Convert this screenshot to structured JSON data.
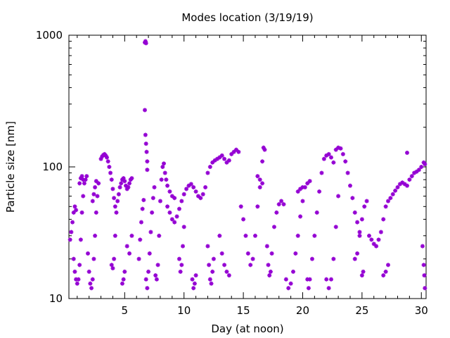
{
  "chart_data": {
    "type": "scatter",
    "title": "Modes location (3/19/19)",
    "xlabel": "Day (at noon)",
    "ylabel": "Particle size [nm]",
    "xlim": [
      0.3,
      30.4
    ],
    "ylim": [
      10,
      1000
    ],
    "yscale": "log",
    "grid": false,
    "legend": "none",
    "x_ticks": [
      5,
      10,
      15,
      20,
      25,
      30
    ],
    "x_tick_labels": [
      "5",
      "10",
      "15",
      "20",
      "25",
      "30"
    ],
    "y_ticks": [
      10,
      100,
      1000
    ],
    "y_tick_labels": [
      "10",
      "100",
      "1000"
    ],
    "marker": "asterisk",
    "color": "#9400d3",
    "series": [
      {
        "values": [
          [
            0.4,
            28
          ],
          [
            0.5,
            32
          ],
          [
            0.6,
            38
          ],
          [
            0.7,
            45
          ],
          [
            0.8,
            50
          ],
          [
            0.9,
            47
          ],
          [
            0.7,
            20
          ],
          [
            0.8,
            16
          ],
          [
            0.9,
            14
          ],
          [
            1.0,
            13
          ],
          [
            1.1,
            14
          ],
          [
            1.2,
            18
          ],
          [
            1.3,
            28
          ],
          [
            1.4,
            45
          ],
          [
            1.5,
            60
          ],
          [
            1.6,
            75
          ],
          [
            1.7,
            80
          ],
          [
            1.8,
            85
          ],
          [
            1.2,
            75
          ],
          [
            1.3,
            82
          ],
          [
            1.4,
            85
          ],
          [
            1.5,
            80
          ],
          [
            1.9,
            22
          ],
          [
            2.0,
            16
          ],
          [
            2.1,
            13
          ],
          [
            2.2,
            12
          ],
          [
            2.3,
            14
          ],
          [
            2.4,
            20
          ],
          [
            2.5,
            30
          ],
          [
            2.6,
            45
          ],
          [
            2.7,
            60
          ],
          [
            2.8,
            75
          ],
          [
            2.3,
            55
          ],
          [
            2.4,
            62
          ],
          [
            2.5,
            70
          ],
          [
            2.6,
            78
          ],
          [
            3.0,
            115
          ],
          [
            3.1,
            120
          ],
          [
            3.2,
            123
          ],
          [
            3.3,
            125
          ],
          [
            3.4,
            122
          ],
          [
            3.5,
            118
          ],
          [
            3.6,
            110
          ],
          [
            3.7,
            100
          ],
          [
            3.8,
            90
          ],
          [
            3.9,
            80
          ],
          [
            4.0,
            68
          ],
          [
            4.1,
            58
          ],
          [
            4.2,
            50
          ],
          [
            3.9,
            18
          ],
          [
            4.0,
            17
          ],
          [
            4.1,
            20
          ],
          [
            4.2,
            30
          ],
          [
            4.3,
            45
          ],
          [
            4.4,
            55
          ],
          [
            4.5,
            62
          ],
          [
            4.6,
            70
          ],
          [
            4.7,
            75
          ],
          [
            4.8,
            80
          ],
          [
            4.9,
            82
          ],
          [
            5.0,
            78
          ],
          [
            5.1,
            72
          ],
          [
            5.2,
            68
          ],
          [
            5.3,
            70
          ],
          [
            5.4,
            75
          ],
          [
            5.5,
            80
          ],
          [
            5.6,
            82
          ],
          [
            4.8,
            13
          ],
          [
            4.9,
            14
          ],
          [
            5.0,
            16
          ],
          [
            5.2,
            25
          ],
          [
            5.4,
            22
          ],
          [
            5.6,
            30
          ],
          [
            6.2,
            20
          ],
          [
            6.3,
            28
          ],
          [
            6.4,
            38
          ],
          [
            6.5,
            48
          ],
          [
            6.6,
            56
          ],
          [
            6.7,
            880
          ],
          [
            6.75,
            900
          ],
          [
            6.8,
            870
          ],
          [
            6.7,
            270
          ],
          [
            6.75,
            175
          ],
          [
            6.8,
            150
          ],
          [
            6.85,
            130
          ],
          [
            6.9,
            110
          ],
          [
            6.9,
            95
          ],
          [
            6.8,
            14
          ],
          [
            6.9,
            12
          ],
          [
            7.0,
            16
          ],
          [
            7.1,
            22
          ],
          [
            7.2,
            32
          ],
          [
            7.3,
            45
          ],
          [
            7.4,
            58
          ],
          [
            7.5,
            70
          ],
          [
            7.6,
            15
          ],
          [
            7.7,
            14
          ],
          [
            7.8,
            18
          ],
          [
            7.9,
            30
          ],
          [
            8.0,
            55
          ],
          [
            8.1,
            80
          ],
          [
            8.2,
            100
          ],
          [
            8.3,
            106
          ],
          [
            8.4,
            90
          ],
          [
            8.5,
            80
          ],
          [
            8.6,
            72
          ],
          [
            8.8,
            65
          ],
          [
            9.0,
            60
          ],
          [
            9.2,
            58
          ],
          [
            8.6,
            50
          ],
          [
            8.8,
            45
          ],
          [
            9.0,
            40
          ],
          [
            9.2,
            38
          ],
          [
            9.4,
            42
          ],
          [
            9.6,
            48
          ],
          [
            9.8,
            55
          ],
          [
            10.0,
            62
          ],
          [
            10.2,
            68
          ],
          [
            10.4,
            72
          ],
          [
            10.6,
            74
          ],
          [
            10.8,
            70
          ],
          [
            11.0,
            65
          ],
          [
            11.2,
            60
          ],
          [
            11.4,
            58
          ],
          [
            11.6,
            62
          ],
          [
            11.8,
            70
          ],
          [
            9.6,
            20
          ],
          [
            9.7,
            16
          ],
          [
            9.8,
            18
          ],
          [
            9.9,
            25
          ],
          [
            10.0,
            35
          ],
          [
            10.7,
            14
          ],
          [
            10.8,
            12
          ],
          [
            10.9,
            13
          ],
          [
            11.0,
            15
          ],
          [
            12.0,
            90
          ],
          [
            12.2,
            100
          ],
          [
            12.4,
            108
          ],
          [
            12.6,
            112
          ],
          [
            12.8,
            115
          ],
          [
            13.0,
            118
          ],
          [
            13.2,
            122
          ],
          [
            13.4,
            115
          ],
          [
            13.6,
            108
          ],
          [
            13.8,
            112
          ],
          [
            14.0,
            125
          ],
          [
            14.2,
            130
          ],
          [
            14.4,
            135
          ],
          [
            14.6,
            130
          ],
          [
            12.0,
            25
          ],
          [
            12.1,
            18
          ],
          [
            12.2,
            14
          ],
          [
            12.3,
            13
          ],
          [
            12.4,
            16
          ],
          [
            12.5,
            20
          ],
          [
            13.0,
            30
          ],
          [
            13.2,
            22
          ],
          [
            13.4,
            18
          ],
          [
            13.6,
            16
          ],
          [
            13.8,
            15
          ],
          [
            14.8,
            50
          ],
          [
            15.0,
            40
          ],
          [
            15.2,
            30
          ],
          [
            15.4,
            22
          ],
          [
            15.6,
            18
          ],
          [
            15.8,
            20
          ],
          [
            16.0,
            30
          ],
          [
            16.2,
            50
          ],
          [
            16.4,
            70
          ],
          [
            16.6,
            110
          ],
          [
            16.7,
            140
          ],
          [
            16.8,
            135
          ],
          [
            16.2,
            85
          ],
          [
            16.4,
            80
          ],
          [
            16.6,
            75
          ],
          [
            17.0,
            25
          ],
          [
            17.1,
            18
          ],
          [
            17.2,
            15
          ],
          [
            17.3,
            16
          ],
          [
            17.4,
            22
          ],
          [
            17.6,
            35
          ],
          [
            17.8,
            45
          ],
          [
            18.0,
            52
          ],
          [
            18.2,
            55
          ],
          [
            18.4,
            52
          ],
          [
            18.6,
            14
          ],
          [
            18.8,
            12
          ],
          [
            19.0,
            13
          ],
          [
            19.2,
            16
          ],
          [
            19.4,
            22
          ],
          [
            19.6,
            30
          ],
          [
            19.8,
            42
          ],
          [
            20.0,
            55
          ],
          [
            20.2,
            70
          ],
          [
            20.4,
            75
          ],
          [
            20.6,
            78
          ],
          [
            19.6,
            65
          ],
          [
            19.8,
            68
          ],
          [
            20.0,
            70
          ],
          [
            20.4,
            14
          ],
          [
            20.5,
            12
          ],
          [
            20.6,
            14
          ],
          [
            20.8,
            20
          ],
          [
            21.0,
            30
          ],
          [
            21.2,
            45
          ],
          [
            21.4,
            65
          ],
          [
            21.6,
            90
          ],
          [
            21.8,
            115
          ],
          [
            22.0,
            122
          ],
          [
            22.2,
            125
          ],
          [
            22.4,
            118
          ],
          [
            22.6,
            108
          ],
          [
            22.0,
            14
          ],
          [
            22.2,
            12
          ],
          [
            22.4,
            14
          ],
          [
            22.6,
            20
          ],
          [
            22.8,
            35
          ],
          [
            23.0,
            60
          ],
          [
            22.8,
            135
          ],
          [
            23.0,
            140
          ],
          [
            23.2,
            138
          ],
          [
            23.4,
            125
          ],
          [
            23.6,
            110
          ],
          [
            23.8,
            90
          ],
          [
            24.0,
            72
          ],
          [
            24.2,
            58
          ],
          [
            24.4,
            45
          ],
          [
            24.6,
            38
          ],
          [
            24.8,
            32
          ],
          [
            24.4,
            20
          ],
          [
            24.6,
            22
          ],
          [
            24.8,
            30
          ],
          [
            25.0,
            40
          ],
          [
            25.2,
            50
          ],
          [
            25.4,
            55
          ],
          [
            25.0,
            15
          ],
          [
            25.1,
            16
          ],
          [
            25.6,
            30
          ],
          [
            25.8,
            28
          ],
          [
            26.0,
            26
          ],
          [
            26.2,
            25
          ],
          [
            26.4,
            28
          ],
          [
            26.6,
            32
          ],
          [
            26.8,
            40
          ],
          [
            27.0,
            50
          ],
          [
            27.2,
            55
          ],
          [
            26.8,
            15
          ],
          [
            27.0,
            16
          ],
          [
            27.2,
            18
          ],
          [
            27.4,
            58
          ],
          [
            27.6,
            62
          ],
          [
            27.8,
            66
          ],
          [
            28.0,
            70
          ],
          [
            28.2,
            74
          ],
          [
            28.4,
            76
          ],
          [
            28.6,
            74
          ],
          [
            28.8,
            72
          ],
          [
            29.0,
            80
          ],
          [
            29.2,
            85
          ],
          [
            29.4,
            90
          ],
          [
            29.6,
            92
          ],
          [
            29.8,
            95
          ],
          [
            30.0,
            100
          ],
          [
            30.2,
            108
          ],
          [
            30.3,
            105
          ],
          [
            28.8,
            128
          ],
          [
            30.1,
            25
          ],
          [
            30.2,
            18
          ],
          [
            30.25,
            15
          ],
          [
            30.3,
            12
          ]
        ]
      }
    ]
  }
}
